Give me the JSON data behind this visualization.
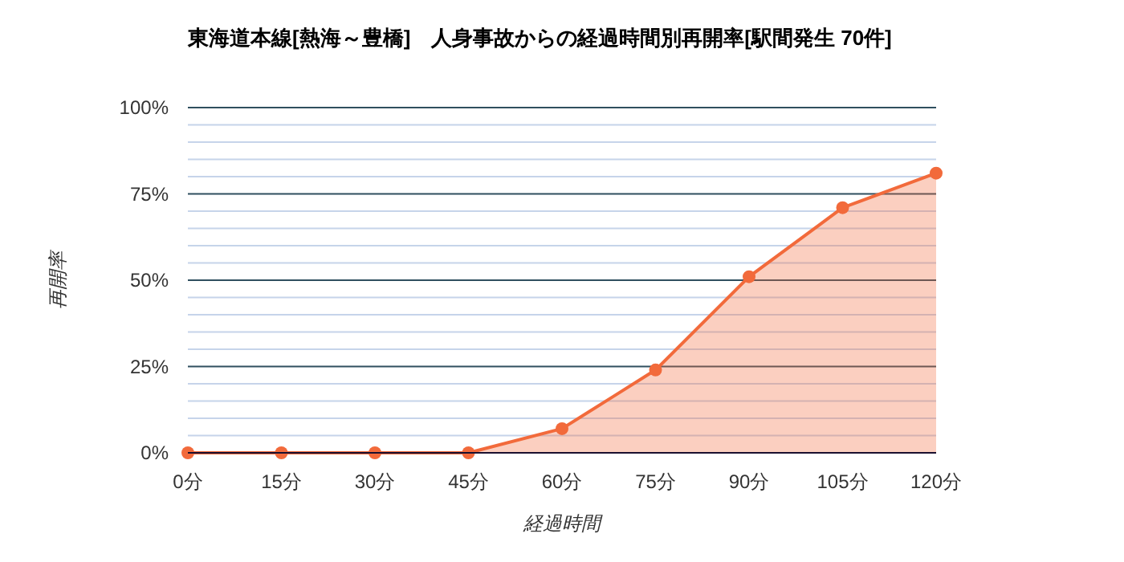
{
  "chart_data": {
    "type": "area",
    "title": "東海道本線[熱海～豊橋]　人身事故からの経過時間別再開率[駅間発生 70件]",
    "xlabel": "経過時間",
    "ylabel": "再開率",
    "categories": [
      "0分",
      "15分",
      "30分",
      "45分",
      "60分",
      "75分",
      "90分",
      "105分",
      "120分"
    ],
    "series": [
      {
        "color": "#f26a3b",
        "values": [
          0,
          0,
          0,
          0,
          7,
          24,
          51,
          71,
          81
        ]
      }
    ],
    "ylim": [
      0,
      100
    ],
    "yticks": [
      {
        "value": 0,
        "label": "0%"
      },
      {
        "value": 5,
        "label": null
      },
      {
        "value": 10,
        "label": null
      },
      {
        "value": 15,
        "label": null
      },
      {
        "value": 20,
        "label": null
      },
      {
        "value": 25,
        "label": "25%"
      },
      {
        "value": 30,
        "label": null
      },
      {
        "value": 35,
        "label": null
      },
      {
        "value": 40,
        "label": null
      },
      {
        "value": 45,
        "label": null
      },
      {
        "value": 50,
        "label": "50%"
      },
      {
        "value": 55,
        "label": null
      },
      {
        "value": 60,
        "label": null
      },
      {
        "value": 65,
        "label": null
      },
      {
        "value": 70,
        "label": null
      },
      {
        "value": 75,
        "label": "75%"
      },
      {
        "value": 80,
        "label": null
      },
      {
        "value": 85,
        "label": null
      },
      {
        "value": 90,
        "label": null
      },
      {
        "value": 95,
        "label": null
      },
      {
        "value": 100,
        "label": "100%"
      }
    ],
    "grid": true,
    "marker": "circle"
  }
}
